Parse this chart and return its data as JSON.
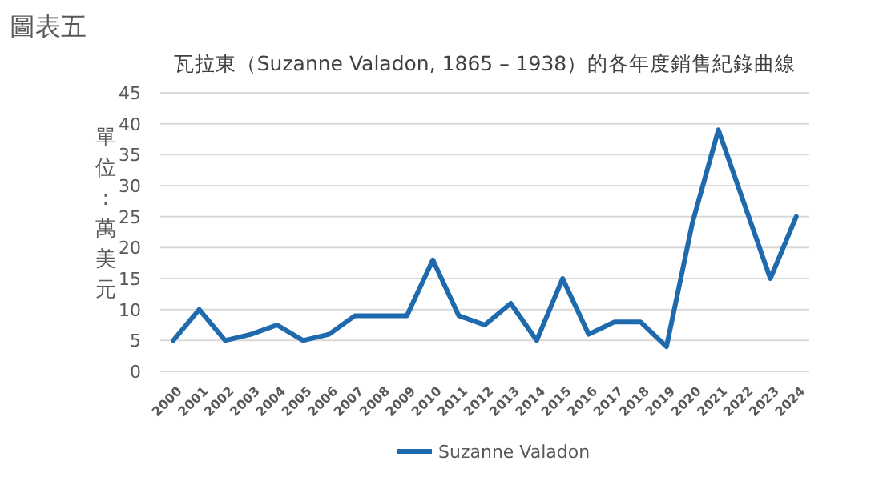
{
  "chart_data": {
    "type": "line",
    "title": "瓦拉東（Suzanne Valadon, 1865 – 1938）的各年度銷售紀錄曲線",
    "ylabel": "單位：萬美元",
    "annotations": [
      "圖表五"
    ],
    "categories": [
      "2000",
      "2001",
      "2002",
      "2003",
      "2004",
      "2005",
      "2006",
      "2007",
      "2008",
      "2009",
      "2010",
      "2011",
      "2012",
      "2013",
      "2014",
      "2015",
      "2016",
      "2017",
      "2018",
      "2019",
      "2020",
      "2021",
      "2022",
      "2023",
      "2024"
    ],
    "series": [
      {
        "name": "Suzanne Valadon",
        "color": "#1f6aad",
        "values": [
          5,
          10,
          5,
          6,
          7.5,
          5,
          6,
          9,
          9,
          9,
          18,
          9,
          7.5,
          11,
          5,
          15,
          6,
          8,
          8,
          4,
          24,
          39,
          27,
          15,
          25
        ]
      }
    ],
    "ylim": [
      0,
      45
    ],
    "yticks": [
      0,
      5,
      10,
      15,
      20,
      25,
      30,
      35,
      40,
      45
    ],
    "grid": "y",
    "legend": "bottom",
    "marker": "none",
    "line_style": "solid"
  }
}
